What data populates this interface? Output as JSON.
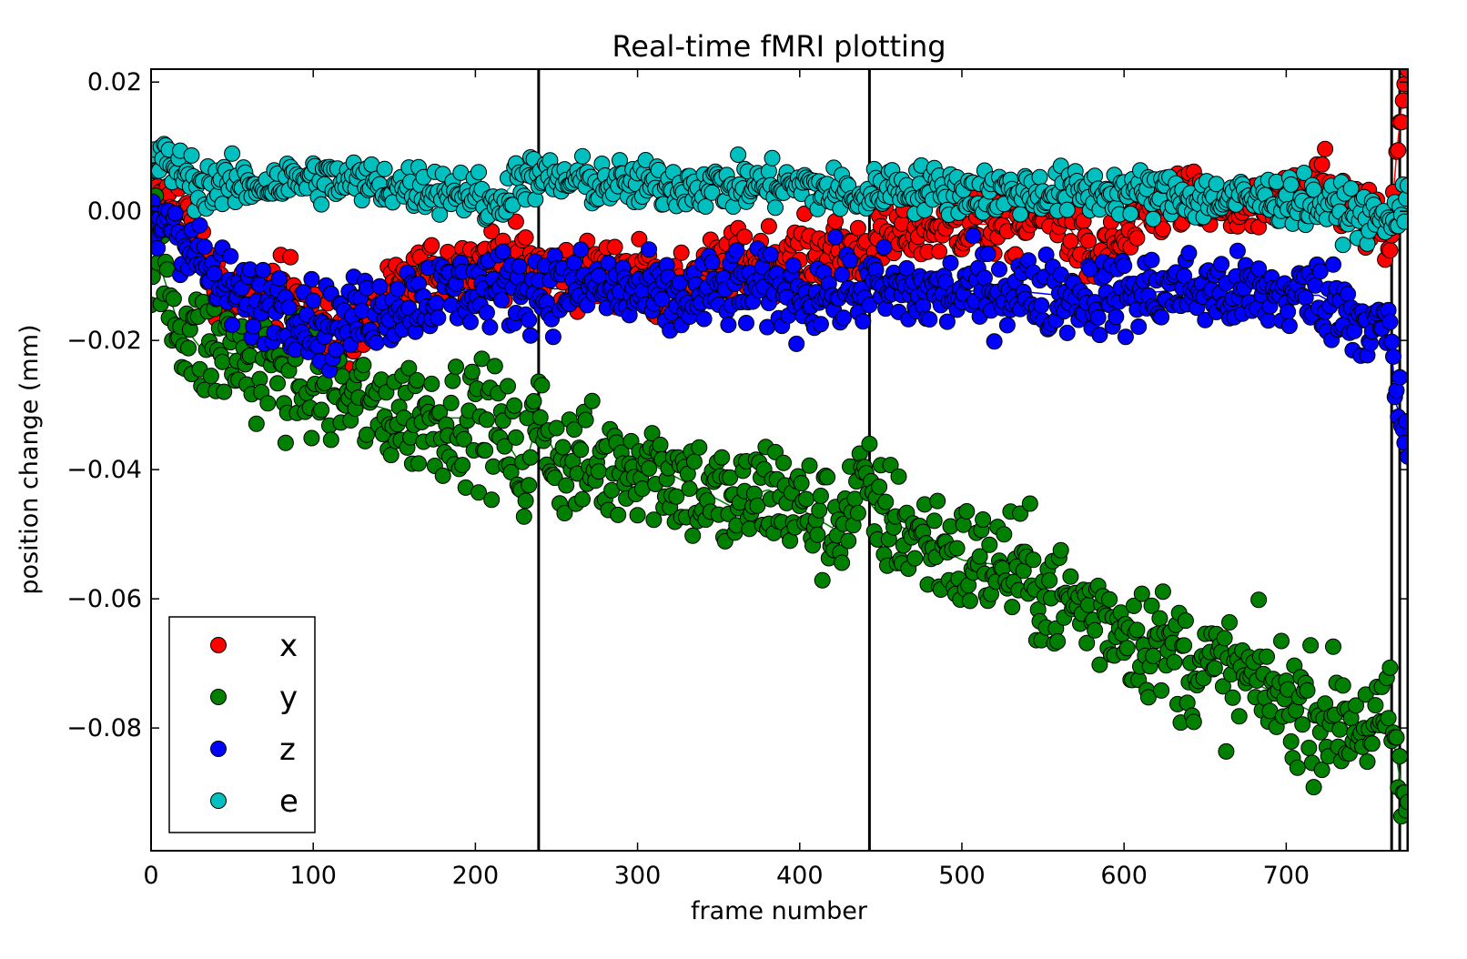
{
  "chart_data": {
    "type": "scatter",
    "title": "Real-time fMRI plotting",
    "xlabel": "frame number",
    "ylabel": "position change (mm)",
    "xlim": [
      0,
      775
    ],
    "ylim": [
      -0.099,
      0.022
    ],
    "xticks": [
      0,
      100,
      200,
      300,
      400,
      500,
      600,
      700
    ],
    "xtick_labels": [
      "0",
      "100",
      "200",
      "300",
      "400",
      "500",
      "600",
      "700"
    ],
    "yticks": [
      0.02,
      0.0,
      -0.02,
      -0.04,
      -0.06,
      -0.08
    ],
    "ytick_labels": [
      "0.02",
      "0.00",
      "−0.02",
      "−0.04",
      "−0.06",
      "−0.08"
    ],
    "grid": false,
    "legend_placement": "lower-left",
    "vertical_lines": [
      239,
      443,
      765,
      770,
      775
    ],
    "n_frames": 776,
    "series": [
      {
        "name": "x",
        "color": "#ff0000",
        "trend": [
          [
            0,
            0.0
          ],
          [
            10,
            0.002
          ],
          [
            20,
            0.0
          ],
          [
            35,
            -0.008
          ],
          [
            50,
            -0.014
          ],
          [
            70,
            -0.013
          ],
          [
            90,
            -0.012
          ],
          [
            100,
            -0.017
          ],
          [
            110,
            -0.02
          ],
          [
            120,
            -0.02
          ],
          [
            140,
            -0.015
          ],
          [
            160,
            -0.011
          ],
          [
            180,
            -0.009
          ],
          [
            200,
            -0.008
          ],
          [
            215,
            -0.007
          ],
          [
            240,
            -0.009
          ],
          [
            270,
            -0.01
          ],
          [
            300,
            -0.009
          ],
          [
            320,
            -0.014
          ],
          [
            340,
            -0.01
          ],
          [
            360,
            -0.008
          ],
          [
            380,
            -0.007
          ],
          [
            400,
            -0.007
          ],
          [
            420,
            -0.006
          ],
          [
            443,
            -0.006
          ],
          [
            470,
            -0.003
          ],
          [
            500,
            -0.002
          ],
          [
            530,
            -0.002
          ],
          [
            560,
            0.0
          ],
          [
            580,
            -0.008
          ],
          [
            595,
            -0.006
          ],
          [
            610,
            -0.002
          ],
          [
            630,
            0.002
          ],
          [
            660,
            0.0
          ],
          [
            690,
            0.0
          ],
          [
            720,
            0.004
          ],
          [
            750,
            -0.001
          ],
          [
            764,
            -0.004
          ],
          [
            770,
            0.015
          ],
          [
            775,
            0.02
          ]
        ],
        "noise": 0.0025
      },
      {
        "name": "y",
        "color": "#007f00",
        "trend": [
          [
            0,
            -0.004
          ],
          [
            15,
            -0.016
          ],
          [
            30,
            -0.021
          ],
          [
            50,
            -0.022
          ],
          [
            80,
            -0.025
          ],
          [
            110,
            -0.028
          ],
          [
            150,
            -0.031
          ],
          [
            180,
            -0.032
          ],
          [
            200,
            -0.032
          ],
          [
            215,
            -0.034
          ],
          [
            230,
            -0.04
          ],
          [
            239,
            -0.032
          ],
          [
            250,
            -0.038
          ],
          [
            280,
            -0.04
          ],
          [
            300,
            -0.038
          ],
          [
            330,
            -0.042
          ],
          [
            360,
            -0.046
          ],
          [
            380,
            -0.043
          ],
          [
            400,
            -0.046
          ],
          [
            420,
            -0.049
          ],
          [
            440,
            -0.043
          ],
          [
            445,
            -0.046
          ],
          [
            470,
            -0.05
          ],
          [
            500,
            -0.054
          ],
          [
            530,
            -0.055
          ],
          [
            560,
            -0.06
          ],
          [
            600,
            -0.064
          ],
          [
            640,
            -0.07
          ],
          [
            680,
            -0.073
          ],
          [
            720,
            -0.078
          ],
          [
            765,
            -0.08
          ],
          [
            770,
            -0.088
          ],
          [
            775,
            -0.093
          ]
        ],
        "noise": 0.0045
      },
      {
        "name": "z",
        "color": "#0000ff",
        "trend": [
          [
            0,
            -0.004
          ],
          [
            10,
            0.0
          ],
          [
            20,
            -0.004
          ],
          [
            40,
            -0.011
          ],
          [
            60,
            -0.014
          ],
          [
            80,
            -0.014
          ],
          [
            110,
            -0.018
          ],
          [
            140,
            -0.015
          ],
          [
            170,
            -0.013
          ],
          [
            200,
            -0.012
          ],
          [
            240,
            -0.012
          ],
          [
            280,
            -0.012
          ],
          [
            320,
            -0.014
          ],
          [
            360,
            -0.012
          ],
          [
            400,
            -0.013
          ],
          [
            443,
            -0.012
          ],
          [
            480,
            -0.013
          ],
          [
            520,
            -0.012
          ],
          [
            560,
            -0.013
          ],
          [
            600,
            -0.013
          ],
          [
            640,
            -0.012
          ],
          [
            680,
            -0.013
          ],
          [
            720,
            -0.013
          ],
          [
            750,
            -0.017
          ],
          [
            764,
            -0.019
          ],
          [
            768,
            -0.03
          ],
          [
            775,
            -0.035
          ]
        ],
        "noise": 0.003
      },
      {
        "name": "e",
        "color": "#00bfbf",
        "trend": [
          [
            0,
            0.007
          ],
          [
            10,
            0.008
          ],
          [
            30,
            0.004
          ],
          [
            60,
            0.004
          ],
          [
            100,
            0.005
          ],
          [
            150,
            0.004
          ],
          [
            200,
            0.003
          ],
          [
            210,
            0.0
          ],
          [
            225,
            0.005
          ],
          [
            240,
            0.005
          ],
          [
            300,
            0.004
          ],
          [
            350,
            0.004
          ],
          [
            400,
            0.004
          ],
          [
            443,
            0.002
          ],
          [
            450,
            0.004
          ],
          [
            500,
            0.003
          ],
          [
            550,
            0.003
          ],
          [
            600,
            0.003
          ],
          [
            650,
            0.002
          ],
          [
            700,
            0.002
          ],
          [
            740,
            0.0
          ],
          [
            765,
            -0.002
          ],
          [
            775,
            0.003
          ]
        ],
        "noise": 0.0018
      }
    ]
  }
}
